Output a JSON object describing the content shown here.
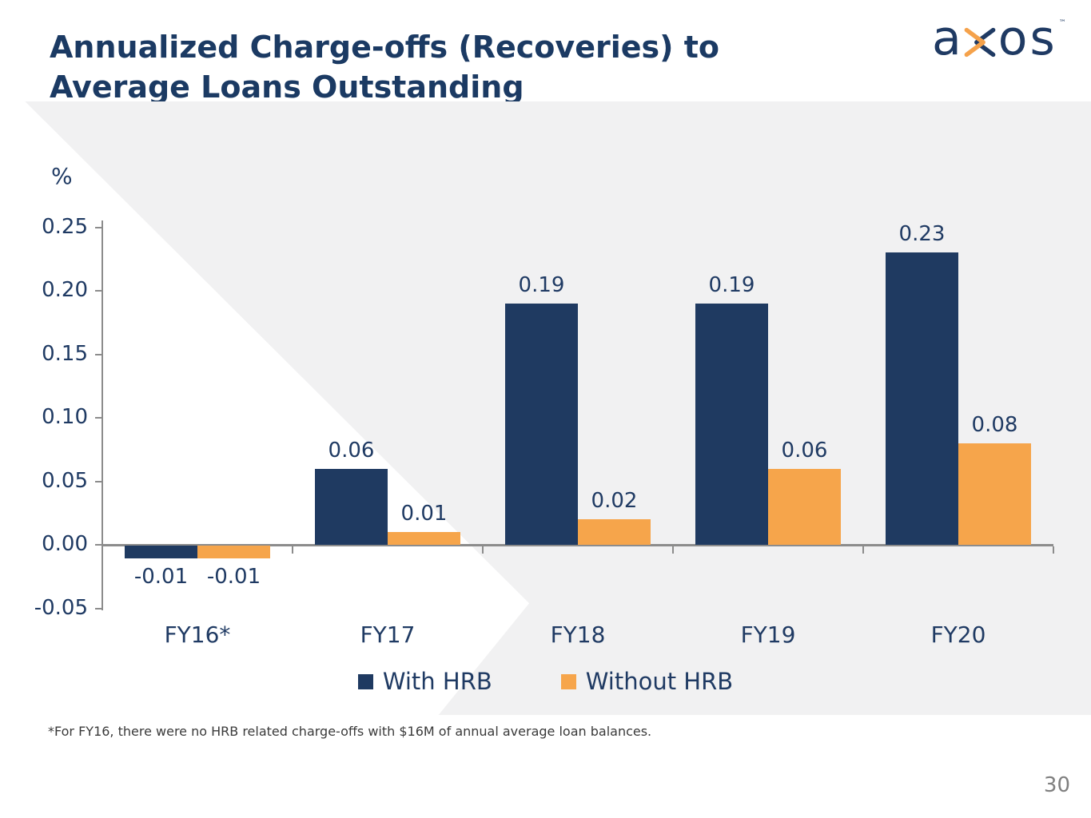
{
  "slide": {
    "title_line1": "Annualized Charge-offs (Recoveries) to",
    "title_line2": "Average Loans Outstanding",
    "footnote": "*For FY16, there were no HRB related charge-offs with $16M of annual average loan balances.",
    "page_number": "30"
  },
  "logo": {
    "name": "axos",
    "letter_a": "a",
    "letters_os": "os",
    "trademark": "™"
  },
  "chart_data": {
    "type": "bar",
    "title": "Annualized Charge-offs (Recoveries) to Average Loans Outstanding",
    "unit_label": "%",
    "xlabel": "",
    "ylabel": "%",
    "categories": [
      "FY16*",
      "FY17",
      "FY18",
      "FY19",
      "FY20"
    ],
    "series": [
      {
        "name": "With HRB",
        "color": "#1F3A61",
        "values": [
          -0.01,
          0.06,
          0.19,
          0.19,
          0.23
        ]
      },
      {
        "name": "Without HRB",
        "color": "#F6A54B",
        "values": [
          -0.01,
          0.01,
          0.02,
          0.06,
          0.08
        ]
      }
    ],
    "data_labels": [
      "-0.01",
      "-0.01",
      "0.06",
      "0.01",
      "0.19",
      "0.02",
      "0.19",
      "0.06",
      "0.23",
      "0.08"
    ],
    "y_ticks": [
      "0.25",
      "0.20",
      "0.15",
      "0.10",
      "0.05",
      "0.00",
      "-0.05"
    ],
    "ylim": [
      -0.05,
      0.25
    ],
    "grid": false,
    "legend_position": "bottom"
  },
  "colors": {
    "navy": "#1F3A61",
    "orange": "#F6A54B",
    "panel_gray": "#F1F1F2",
    "axis_gray": "#8C8C8C",
    "title_navy": "#1B3A63",
    "footnote_gray": "#3A3A3A",
    "page_number_gray": "#7F7F7F"
  }
}
